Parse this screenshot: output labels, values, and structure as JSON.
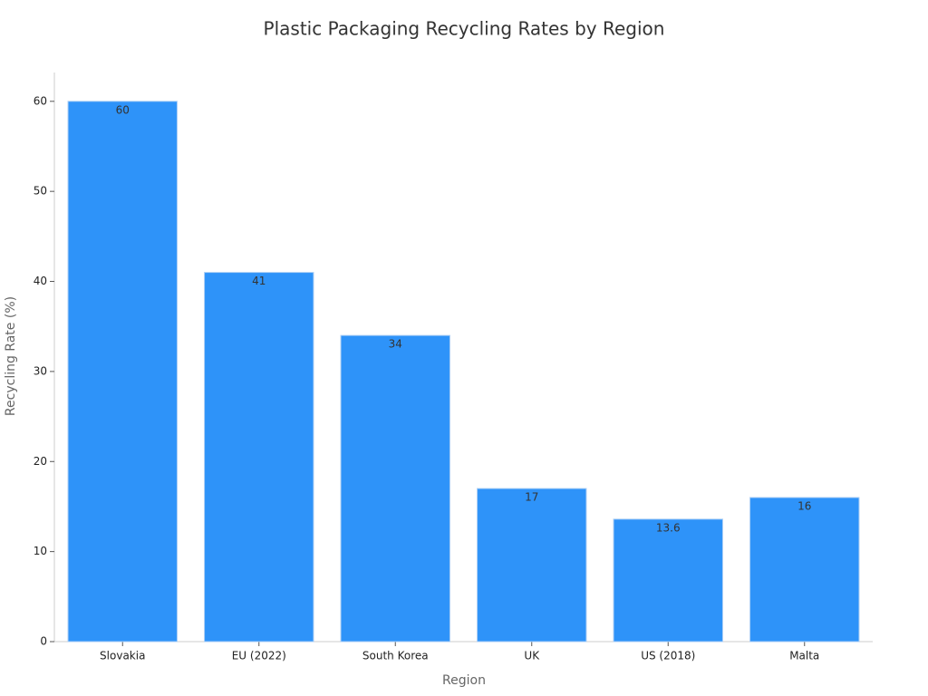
{
  "chart_data": {
    "type": "bar",
    "title": "Plastic Packaging Recycling Rates by Region",
    "x_label": "Region",
    "y_label": "Recycling Rate (%)",
    "categories": [
      "Slovakia",
      "EU (2022)",
      "South Korea",
      "UK",
      "US (2018)",
      "Malta"
    ],
    "values": [
      60,
      41,
      34,
      17,
      13.6,
      16
    ],
    "color": "#2e93f9",
    "ylim": [
      0,
      63.2
    ],
    "yticks": [
      0,
      10,
      20,
      30,
      40,
      50,
      60
    ],
    "grid": false
  }
}
